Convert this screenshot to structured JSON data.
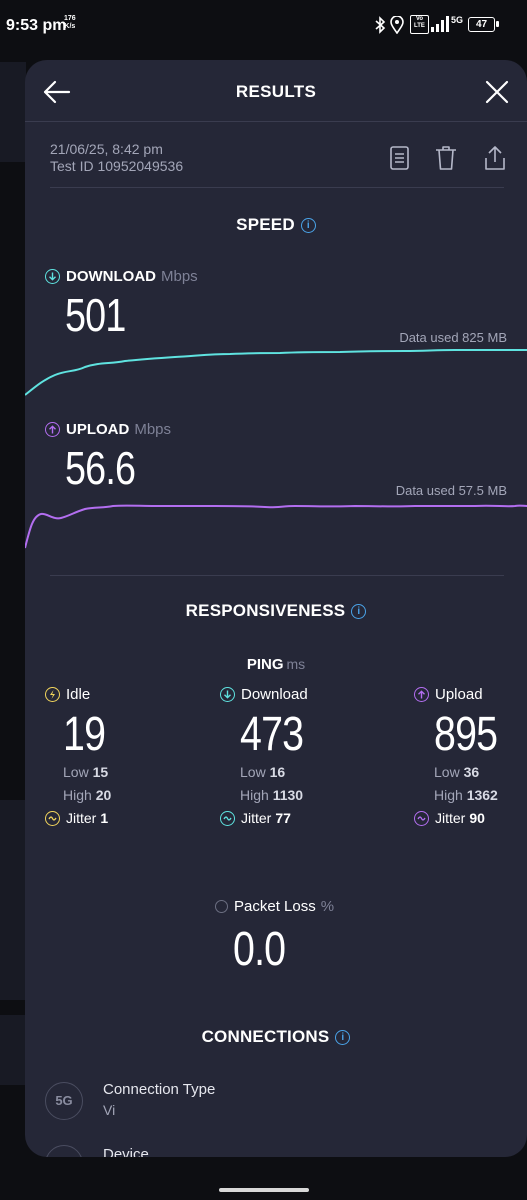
{
  "status_bar": {
    "time": "9:53 pm",
    "net_speed_top": "176",
    "net_speed_unit": "K/s",
    "battery": "47",
    "net_tag": "5G",
    "volte": "Vo LTE"
  },
  "header": {
    "title": "RESULTS",
    "back_icon": "arrow-left-icon",
    "close_icon": "close-icon"
  },
  "meta": {
    "date": "21/06/25, 8:42 pm",
    "test_id": "Test ID 10952049536",
    "actions": [
      "document-icon",
      "trash-icon",
      "share-icon"
    ]
  },
  "speed": {
    "title": "SPEED",
    "download": {
      "label": "DOWNLOAD",
      "unit": "Mbps",
      "value": "501",
      "data_used": "Data used 825 MB",
      "color": "#5fe3e0"
    },
    "upload": {
      "label": "UPLOAD",
      "unit": "Mbps",
      "value": "56.6",
      "data_used": "Data used 57.5 MB",
      "color": "#b36ef0"
    }
  },
  "responsiveness": {
    "title": "RESPONSIVENESS",
    "ping_label": "PING",
    "ping_unit": "ms",
    "columns": [
      {
        "label": "Idle",
        "value": "19",
        "low_label": "Low",
        "low": "15",
        "high_label": "High",
        "high": "20",
        "jitter_label": "Jitter",
        "jitter": "1",
        "color": "#f2d55c"
      },
      {
        "label": "Download",
        "value": "473",
        "low_label": "Low",
        "low": "16",
        "high_label": "High",
        "high": "1130",
        "jitter_label": "Jitter",
        "jitter": "77",
        "color": "#5fe3e0"
      },
      {
        "label": "Upload",
        "value": "895",
        "low_label": "Low",
        "low": "36",
        "high_label": "High",
        "high": "1362",
        "jitter_label": "Jitter",
        "jitter": "90",
        "color": "#b36ef0"
      }
    ],
    "packet_loss": {
      "label": "Packet Loss",
      "unit": "%",
      "value": "0.0"
    }
  },
  "connections": {
    "title": "CONNECTIONS",
    "items": [
      {
        "icon_text": "5G",
        "label": "Connection Type",
        "value": "Vi"
      },
      {
        "icon_text": "",
        "label": "Device",
        "value": ""
      }
    ]
  }
}
